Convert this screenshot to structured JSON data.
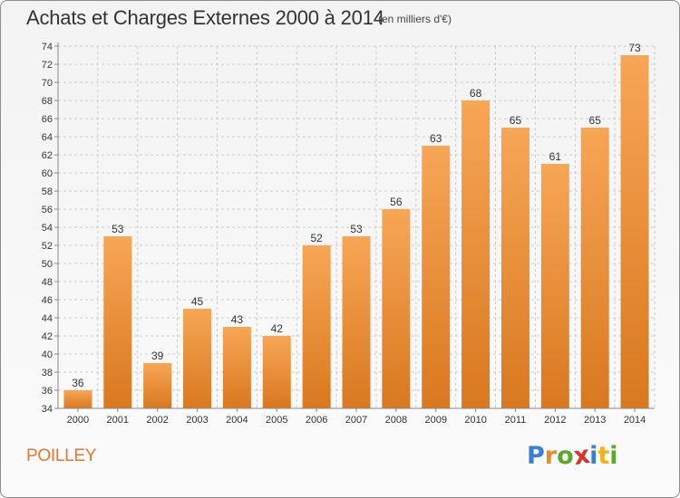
{
  "title": "Achats et Charges Externes 2000 à 2014",
  "subtitle": "(en milliers d'€)",
  "commune": "POILLEY",
  "brand": {
    "text": "Proxiti",
    "letters": [
      {
        "ch": "P",
        "color": "#3a7fd0"
      },
      {
        "ch": "r",
        "color": "#f08a24"
      },
      {
        "ch": "o",
        "color": "#5aa832"
      },
      {
        "ch": "x",
        "color": "#d9312b"
      },
      {
        "ch": "i",
        "color": "#3a7fd0"
      },
      {
        "ch": "t",
        "color": "#f3b11c"
      },
      {
        "ch": "i",
        "color": "#5aa832"
      }
    ]
  },
  "colors": {
    "bar_top": "#f7a656",
    "bar_bottom": "#d9781f",
    "grid": "#cccccc",
    "axis": "#888888"
  },
  "chart_data": {
    "type": "bar",
    "title": "Achats et Charges Externes 2000 à 2014",
    "subtitle": "(en milliers d'€)",
    "xlabel": "",
    "ylabel": "",
    "categories": [
      "2000",
      "2001",
      "2002",
      "2003",
      "2004",
      "2005",
      "2006",
      "2007",
      "2008",
      "2009",
      "2010",
      "2011",
      "2012",
      "2013",
      "2014"
    ],
    "values": [
      36,
      53,
      39,
      45,
      43,
      42,
      52,
      53,
      56,
      63,
      68,
      65,
      61,
      65,
      73
    ],
    "ylim": [
      34,
      74
    ],
    "yticks": [
      34,
      36,
      38,
      40,
      42,
      44,
      46,
      48,
      50,
      52,
      54,
      56,
      58,
      60,
      62,
      64,
      66,
      68,
      70,
      72,
      74
    ],
    "grid": true,
    "data_labels": true,
    "legend": "none"
  }
}
